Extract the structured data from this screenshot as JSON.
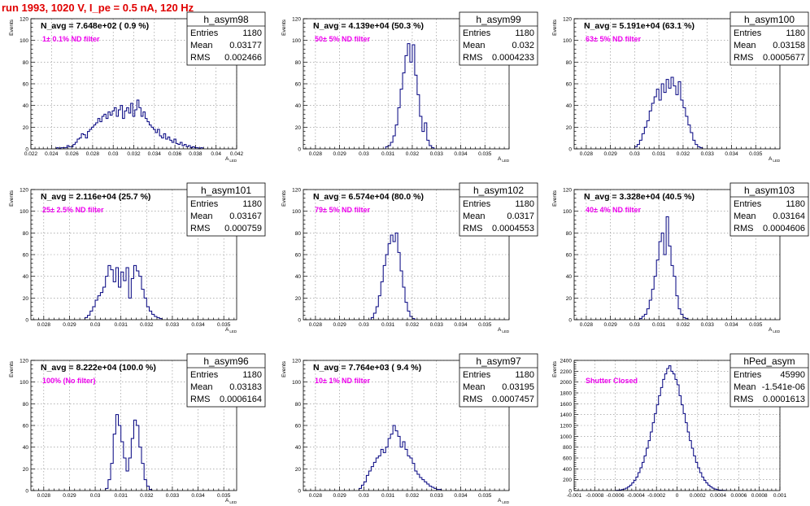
{
  "page_title": "run 1993,  1020 V, I_pe = 0.5 nA, 120 Hz",
  "colors": {
    "title": "#e00000",
    "filter_label": "#ee00ee",
    "histogram": "#00007f"
  },
  "chart_data": [
    {
      "type": "histogram",
      "name": "h_asym98",
      "navg": "N_avg = 7.648e+02 ( 0.9 %)",
      "filter_label": "1± 0.1% ND filter",
      "stats": {
        "Entries": "1180",
        "Mean": "0.03177",
        "RMS": "0.002466"
      },
      "xlabel": "A",
      "xlabel_sub": "LED",
      "ylabel": "Events",
      "xlim": [
        0.022,
        0.042
      ],
      "ylim": [
        0,
        120
      ],
      "xticks": [
        0.022,
        0.024,
        0.026,
        0.028,
        0.03,
        0.032,
        0.034,
        0.036,
        0.038,
        0.04,
        0.042
      ],
      "xtick_labels": [
        "0.022",
        "0.024",
        "0.026",
        "0.028",
        "0.03",
        "0.032",
        "0.034",
        "0.036",
        "0.038",
        "0.04",
        "0.042"
      ],
      "yticks": [
        0,
        20,
        40,
        60,
        80,
        100,
        120
      ],
      "bins": {
        "start": 0.0245,
        "width": 0.0002,
        "counts": [
          1,
          0,
          1,
          1,
          1,
          3,
          2,
          2,
          4,
          6,
          9,
          10,
          14,
          13,
          10,
          16,
          18,
          20,
          22,
          24,
          28,
          25,
          30,
          32,
          28,
          34,
          31,
          35,
          38,
          30,
          36,
          40,
          28,
          35,
          38,
          33,
          42,
          30,
          36,
          45,
          38,
          30,
          34,
          28,
          25,
          22,
          20,
          18,
          15,
          18,
          12,
          10,
          14,
          9,
          11,
          8,
          6,
          9,
          5,
          4,
          6,
          3,
          4,
          2,
          3,
          1,
          2,
          1,
          1,
          0,
          1
        ]
      }
    },
    {
      "type": "histogram",
      "name": "h_asym99",
      "navg": "N_avg = 4.139e+04 (50.3 %)",
      "filter_label": "50± 5% ND filter",
      "stats": {
        "Entries": "1180",
        "Mean": "0.032",
        "RMS": "0.0004233"
      },
      "xlabel": "A",
      "xlabel_sub": "LED",
      "ylabel": "Events",
      "xlim": [
        0.0275,
        0.036
      ],
      "ylim": [
        0,
        120
      ],
      "xticks": [
        0.028,
        0.029,
        0.03,
        0.031,
        0.032,
        0.033,
        0.034,
        0.035
      ],
      "xtick_labels": [
        "0.028",
        "0.029",
        "0.03",
        "0.031",
        "0.032",
        "0.033",
        "0.034",
        "0.035"
      ],
      "yticks": [
        0,
        20,
        40,
        60,
        80,
        100,
        120
      ],
      "bins": {
        "start": 0.0309,
        "width": 0.0001,
        "counts": [
          2,
          3,
          6,
          12,
          22,
          38,
          55,
          70,
          86,
          97,
          80,
          96,
          68,
          50,
          30,
          16,
          24,
          8,
          3,
          1
        ]
      }
    },
    {
      "type": "histogram",
      "name": "h_asym100",
      "navg": "N_avg = 5.191e+04 (63.1 %)",
      "filter_label": "63± 5% ND filter",
      "stats": {
        "Entries": "1180",
        "Mean": "0.03158",
        "RMS": "0.0005677"
      },
      "xlabel": "A",
      "xlabel_sub": "LED",
      "ylabel": "Events",
      "xlim": [
        0.0275,
        0.036
      ],
      "ylim": [
        0,
        120
      ],
      "xticks": [
        0.028,
        0.029,
        0.03,
        0.031,
        0.032,
        0.033,
        0.034,
        0.035
      ],
      "xtick_labels": [
        "0.028",
        "0.029",
        "0.03",
        "0.031",
        "0.032",
        "0.033",
        "0.034",
        "0.035"
      ],
      "yticks": [
        0,
        20,
        40,
        60,
        80,
        100,
        120
      ],
      "bins": {
        "start": 0.03,
        "width": 0.0001,
        "counts": [
          2,
          4,
          8,
          14,
          20,
          26,
          35,
          42,
          48,
          55,
          45,
          60,
          52,
          64,
          56,
          66,
          58,
          50,
          62,
          45,
          38,
          30,
          22,
          15,
          8,
          4,
          2,
          1
        ]
      }
    },
    {
      "type": "histogram",
      "name": "h_asym101",
      "navg": "N_avg = 2.116e+04 (25.7 %)",
      "filter_label": "25± 2.5% ND filter",
      "stats": {
        "Entries": "1180",
        "Mean": "0.03167",
        "RMS": "0.000759"
      },
      "xlabel": "A",
      "xlabel_sub": "LED",
      "ylabel": "Events",
      "xlim": [
        0.0275,
        0.0355
      ],
      "ylim": [
        0,
        120
      ],
      "xticks": [
        0.028,
        0.029,
        0.03,
        0.031,
        0.032,
        0.033,
        0.034,
        0.035
      ],
      "xtick_labels": [
        "0.028",
        "0.029",
        "0.03",
        "0.031",
        "0.032",
        "0.033",
        "0.034",
        "0.035"
      ],
      "yticks": [
        0,
        20,
        40,
        60,
        80,
        100,
        120
      ],
      "bins": {
        "start": 0.0296,
        "width": 0.0001,
        "counts": [
          2,
          4,
          8,
          12,
          18,
          22,
          25,
          30,
          40,
          50,
          46,
          35,
          48,
          30,
          44,
          36,
          48,
          20,
          38,
          50,
          45,
          40,
          28,
          20,
          12,
          8,
          5,
          3,
          2,
          1
        ]
      }
    },
    {
      "type": "histogram",
      "name": "h_asym102",
      "navg": "N_avg = 6.574e+04 (80.0 %)",
      "filter_label": "79± 5% ND filter",
      "stats": {
        "Entries": "1180",
        "Mean": "0.0317",
        "RMS": "0.0004553"
      },
      "xlabel": "A",
      "xlabel_sub": "LED",
      "ylabel": "Events",
      "xlim": [
        0.0275,
        0.036
      ],
      "ylim": [
        0,
        120
      ],
      "xticks": [
        0.028,
        0.029,
        0.03,
        0.031,
        0.032,
        0.033,
        0.034,
        0.035
      ],
      "xtick_labels": [
        "0.028",
        "0.029",
        "0.03",
        "0.031",
        "0.032",
        "0.033",
        "0.034",
        "0.035"
      ],
      "yticks": [
        0,
        20,
        40,
        60,
        80,
        100,
        120
      ],
      "bins": {
        "start": 0.0303,
        "width": 0.0001,
        "counts": [
          2,
          6,
          12,
          22,
          35,
          50,
          60,
          70,
          78,
          72,
          80,
          62,
          45,
          30,
          16,
          8,
          3,
          1
        ]
      }
    },
    {
      "type": "histogram",
      "name": "h_asym103",
      "navg": "N_avg = 3.328e+04 (40.5 %)",
      "filter_label": "40± 4% ND filter",
      "stats": {
        "Entries": "1180",
        "Mean": "0.03164",
        "RMS": "0.0004606"
      },
      "xlabel": "A",
      "xlabel_sub": "LED",
      "ylabel": "Events",
      "xlim": [
        0.0275,
        0.036
      ],
      "ylim": [
        0,
        120
      ],
      "xticks": [
        0.028,
        0.029,
        0.03,
        0.031,
        0.032,
        0.033,
        0.034,
        0.035
      ],
      "xtick_labels": [
        "0.028",
        "0.029",
        "0.03",
        "0.031",
        "0.032",
        "0.033",
        "0.034",
        "0.035"
      ],
      "yticks": [
        0,
        20,
        40,
        60,
        80,
        100,
        120
      ],
      "bins": {
        "start": 0.0302,
        "width": 0.0001,
        "counts": [
          1,
          3,
          5,
          10,
          18,
          28,
          40,
          55,
          72,
          80,
          60,
          95,
          68,
          50,
          40,
          22,
          10,
          5,
          2,
          1
        ]
      }
    },
    {
      "type": "histogram",
      "name": "h_asym96",
      "navg": "N_avg = 8.222e+04 (100.0 %)",
      "filter_label": "100% (No filter)",
      "stats": {
        "Entries": "1180",
        "Mean": "0.03183",
        "RMS": "0.0006164"
      },
      "xlabel": "A",
      "xlabel_sub": "LED",
      "ylabel": "Events",
      "xlim": [
        0.0275,
        0.0355
      ],
      "ylim": [
        0,
        120
      ],
      "xticks": [
        0.028,
        0.029,
        0.03,
        0.031,
        0.032,
        0.033,
        0.034,
        0.035
      ],
      "xtick_labels": [
        "0.028",
        "0.029",
        "0.03",
        "0.031",
        "0.032",
        "0.033",
        "0.034",
        "0.035"
      ],
      "yticks": [
        0,
        20,
        40,
        60,
        80,
        100,
        120
      ],
      "bins": {
        "start": 0.0304,
        "width": 0.0001,
        "counts": [
          2,
          10,
          25,
          52,
          70,
          60,
          45,
          30,
          18,
          30,
          48,
          65,
          60,
          40,
          25,
          10,
          4,
          1
        ]
      }
    },
    {
      "type": "histogram",
      "name": "h_asym97",
      "navg": "N_avg = 7.764e+03 ( 9.4 %)",
      "filter_label": "10± 1% ND filter",
      "stats": {
        "Entries": "1180",
        "Mean": "0.03195",
        "RMS": "0.0007457"
      },
      "xlabel": "A",
      "xlabel_sub": "LED",
      "ylabel": "Events",
      "xlim": [
        0.0275,
        0.036
      ],
      "ylim": [
        0,
        120
      ],
      "xticks": [
        0.028,
        0.029,
        0.03,
        0.031,
        0.032,
        0.033,
        0.034,
        0.035
      ],
      "xtick_labels": [
        "0.028",
        "0.029",
        "0.03",
        "0.031",
        "0.032",
        "0.033",
        "0.034",
        "0.035"
      ],
      "yticks": [
        0,
        20,
        40,
        60,
        80,
        100,
        120
      ],
      "bins": {
        "start": 0.0298,
        "width": 0.0001,
        "counts": [
          2,
          5,
          8,
          14,
          18,
          22,
          26,
          30,
          32,
          38,
          35,
          40,
          48,
          52,
          60,
          55,
          50,
          40,
          45,
          38,
          32,
          30,
          25,
          18,
          15,
          12,
          10,
          8,
          6,
          4,
          3,
          2,
          1,
          1
        ]
      }
    },
    {
      "type": "histogram",
      "name": "hPed_asym",
      "navg": "",
      "filter_label": "Shutter Closed",
      "stats": {
        "Entries": "45990",
        "Mean": "-1.541e-06",
        "RMS": "0.0001613"
      },
      "xlabel": "",
      "xlabel_sub": "",
      "ylabel": "Events",
      "xlim": [
        -0.001,
        0.001
      ],
      "ylim": [
        0,
        2400
      ],
      "xticks": [
        -0.001,
        -0.0008,
        -0.0006,
        -0.0004,
        -0.0002,
        0,
        0.0002,
        0.0004,
        0.0006,
        0.0008,
        0.001
      ],
      "xtick_labels": [
        "-0.001",
        "-0.0008",
        "-0.0006",
        "-0.0004",
        "-0.0002",
        "0",
        "0.0002",
        "0.0004",
        "0.0006",
        "0.0008",
        "0.001"
      ],
      "yticks": [
        0,
        200,
        400,
        600,
        800,
        1000,
        1200,
        1400,
        1600,
        1800,
        2000,
        2200,
        2400
      ],
      "bins": {
        "start": -0.0006,
        "width": 2e-05,
        "counts": [
          3,
          6,
          10,
          18,
          28,
          45,
          70,
          100,
          140,
          190,
          250,
          330,
          420,
          520,
          640,
          780,
          920,
          1080,
          1250,
          1420,
          1580,
          1750,
          1900,
          2050,
          2150,
          2250,
          2300,
          2200,
          2150,
          2050,
          1950,
          1750,
          1580,
          1420,
          1250,
          1080,
          920,
          780,
          640,
          520,
          420,
          330,
          250,
          190,
          140,
          100,
          70,
          45,
          28,
          18,
          10,
          6,
          3,
          1
        ]
      }
    }
  ]
}
